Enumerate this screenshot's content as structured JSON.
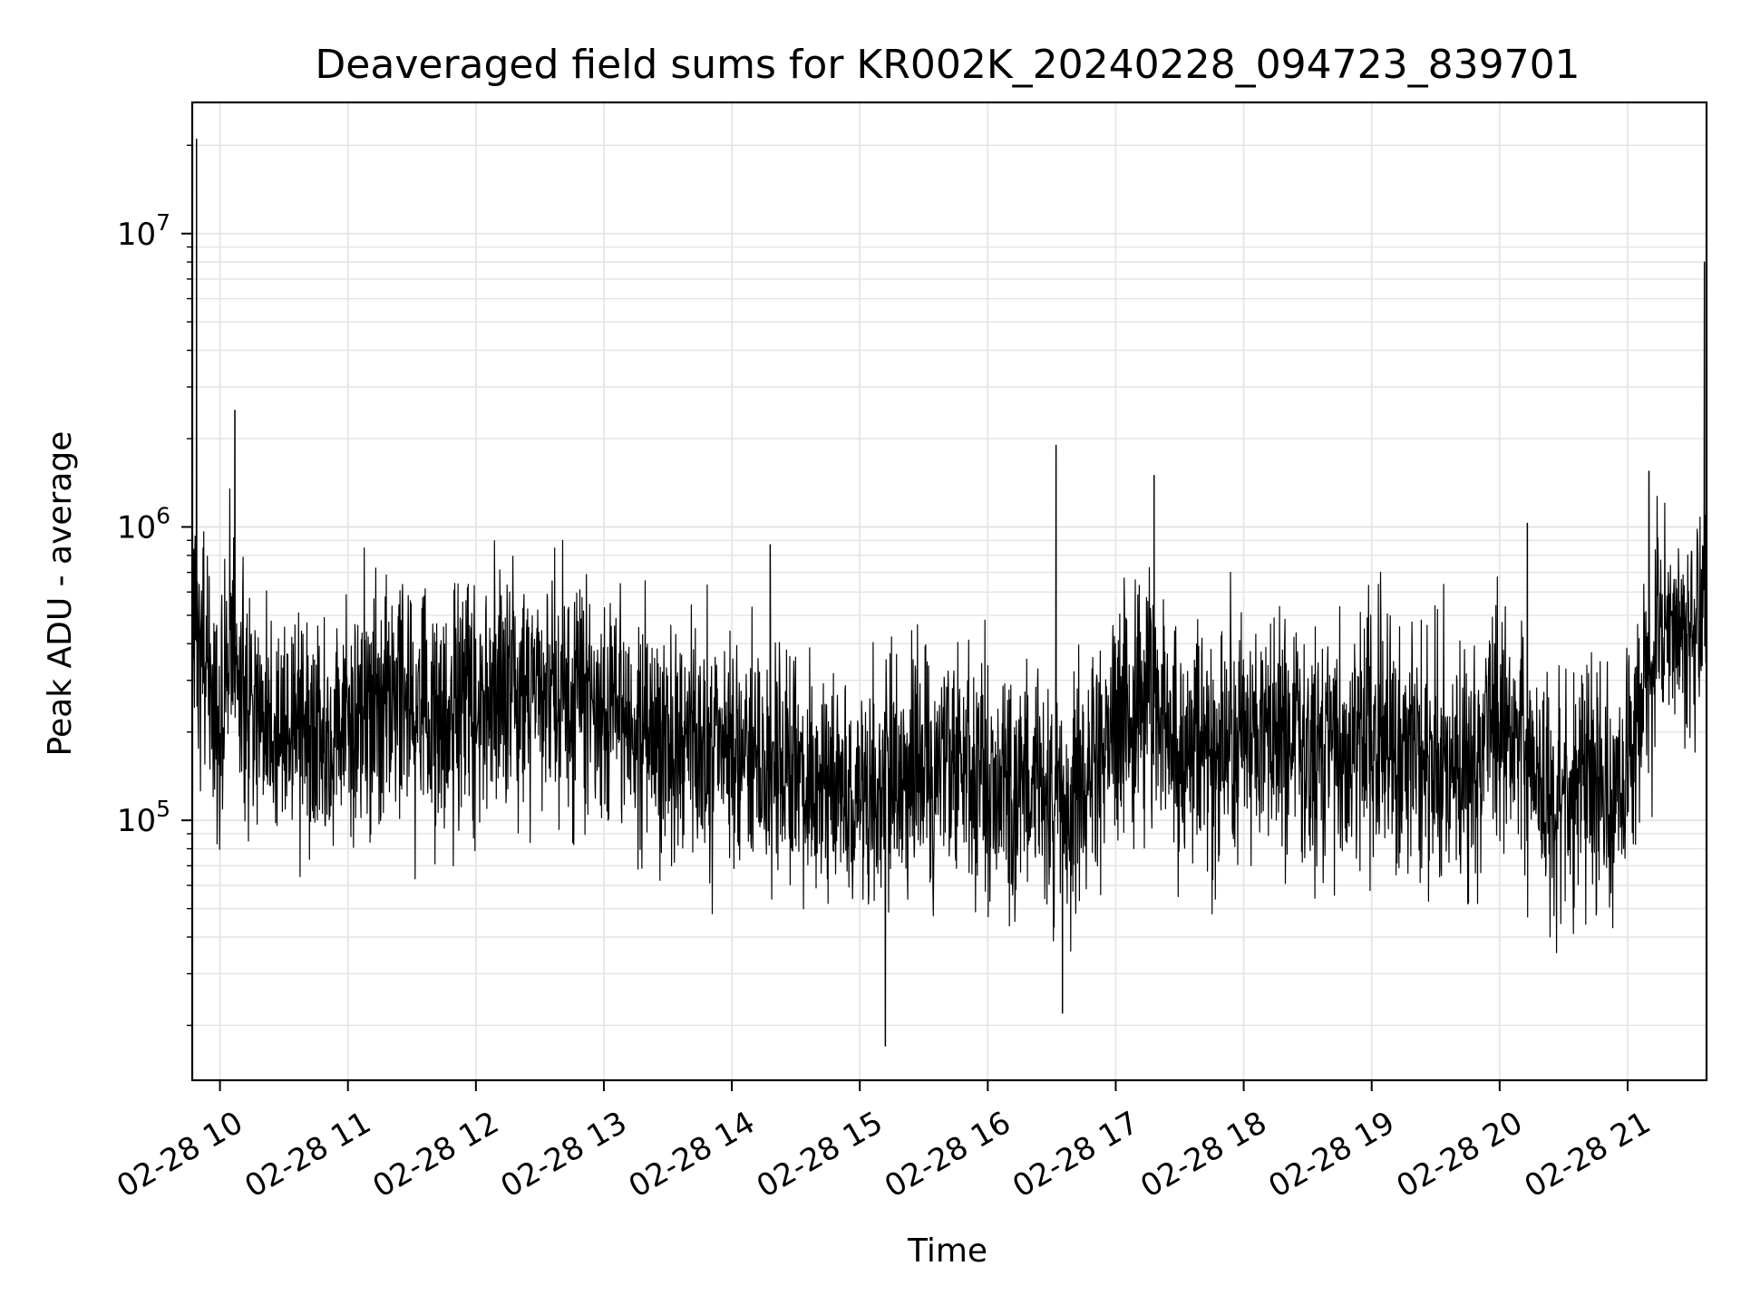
{
  "chart_data": {
    "type": "line",
    "title": "Deaveraged field sums for KR002K_20240228_094723_839701",
    "xlabel": "Time",
    "ylabel": "Peak ADU - average",
    "yscale": "log",
    "ylim": [
      13000,
      28000000
    ],
    "xlim": [
      "2024-02-28 09:47",
      "2024-02-28 21:37"
    ],
    "grid": "on (major and minor)",
    "line_color": "#000000",
    "xticks": [
      {
        "t": "2024-02-28 10:00",
        "label": "02-28 10"
      },
      {
        "t": "2024-02-28 11:00",
        "label": "02-28 11"
      },
      {
        "t": "2024-02-28 12:00",
        "label": "02-28 12"
      },
      {
        "t": "2024-02-28 13:00",
        "label": "02-28 13"
      },
      {
        "t": "2024-02-28 14:00",
        "label": "02-28 14"
      },
      {
        "t": "2024-02-28 15:00",
        "label": "02-28 15"
      },
      {
        "t": "2024-02-28 16:00",
        "label": "02-28 16"
      },
      {
        "t": "2024-02-28 17:00",
        "label": "02-28 17"
      },
      {
        "t": "2024-02-28 18:00",
        "label": "02-28 18"
      },
      {
        "t": "2024-02-28 19:00",
        "label": "02-28 19"
      },
      {
        "t": "2024-02-28 20:00",
        "label": "02-28 20"
      },
      {
        "t": "2024-02-28 21:00",
        "label": "02-28 21"
      }
    ],
    "yticks": [
      {
        "value": 100000,
        "base": "10",
        "exp": "5"
      },
      {
        "value": 1000000,
        "base": "10",
        "exp": "6"
      },
      {
        "value": 10000000,
        "base": "10",
        "exp": "7"
      }
    ],
    "series": [
      {
        "x": [
          "2024-02-28 09:47",
          "2024-02-28 09:50",
          "2024-02-28 10:00",
          "2024-02-28 10:05",
          "2024-02-28 10:10",
          "2024-02-28 10:20",
          "2024-02-28 10:30",
          "2024-02-28 10:40",
          "2024-02-28 10:50",
          "2024-02-28 11:00",
          "2024-02-28 11:15",
          "2024-02-28 11:30",
          "2024-02-28 11:45",
          "2024-02-28 12:00",
          "2024-02-28 12:15",
          "2024-02-28 12:30",
          "2024-02-28 12:45",
          "2024-02-28 13:00",
          "2024-02-28 13:15",
          "2024-02-28 13:30",
          "2024-02-28 13:45",
          "2024-02-28 14:00",
          "2024-02-28 14:15",
          "2024-02-28 14:30",
          "2024-02-28 14:45",
          "2024-02-28 15:00",
          "2024-02-28 15:15",
          "2024-02-28 15:30",
          "2024-02-28 15:45",
          "2024-02-28 16:00",
          "2024-02-28 16:15",
          "2024-02-28 16:30",
          "2024-02-28 16:45",
          "2024-02-28 17:00",
          "2024-02-28 17:15",
          "2024-02-28 17:30",
          "2024-02-28 17:45",
          "2024-02-28 18:00",
          "2024-02-28 18:15",
          "2024-02-28 18:30",
          "2024-02-28 18:45",
          "2024-02-28 19:00",
          "2024-02-28 19:15",
          "2024-02-28 19:30",
          "2024-02-28 19:45",
          "2024-02-28 20:00",
          "2024-02-28 20:15",
          "2024-02-28 20:30",
          "2024-02-28 20:45",
          "2024-02-28 21:00",
          "2024-02-28 21:15",
          "2024-02-28 21:30",
          "2024-02-28 21:37"
        ],
        "y": [
          550000,
          350000,
          220000,
          550000,
          260000,
          230000,
          200000,
          220000,
          210000,
          230000,
          240000,
          240000,
          210000,
          250000,
          300000,
          280000,
          260000,
          240000,
          210000,
          190000,
          180000,
          170000,
          160000,
          150000,
          130000,
          120000,
          140000,
          150000,
          160000,
          140000,
          130000,
          120000,
          150000,
          210000,
          260000,
          180000,
          160000,
          220000,
          190000,
          180000,
          170000,
          200000,
          180000,
          160000,
          140000,
          240000,
          130000,
          120000,
          140000,
          150000,
          450000,
          500000,
          700000
        ],
        "spikes": [
          {
            "t": "2024-02-28 09:49",
            "y": 21000000
          },
          {
            "t": "2024-02-28 10:07",
            "y": 2500000
          },
          {
            "t": "2024-02-28 14:18",
            "y": 870000
          },
          {
            "t": "2024-02-28 15:12",
            "y": 17000
          },
          {
            "t": "2024-02-28 16:32",
            "y": 1900000
          },
          {
            "t": "2024-02-28 16:35",
            "y": 22000
          },
          {
            "t": "2024-02-28 17:18",
            "y": 1500000
          },
          {
            "t": "2024-02-28 20:13",
            "y": 1030000
          },
          {
            "t": "2024-02-28 21:10",
            "y": 1550000
          },
          {
            "t": "2024-02-28 21:36",
            "y": 8000000
          }
        ]
      }
    ]
  }
}
